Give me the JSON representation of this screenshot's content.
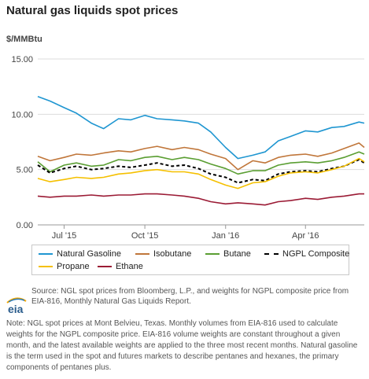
{
  "title": "Natural gas liquids spot prices",
  "chart_data": {
    "type": "line",
    "unit_label": "$/MMBtu",
    "ylim": [
      0,
      15
    ],
    "y_ticks": [
      "15.00",
      "10.00",
      "5.00",
      "0.00"
    ],
    "y_tick_values": [
      15,
      10,
      5,
      0
    ],
    "x_range": [
      "2015-06-01",
      "2016-06-07"
    ],
    "x_ticks": [
      {
        "label": "Jul '15",
        "date": "2015-07-01"
      },
      {
        "label": "Oct '15",
        "date": "2015-10-01"
      },
      {
        "label": "Jan '16",
        "date": "2016-01-01"
      },
      {
        "label": "Apr '16",
        "date": "2016-04-01"
      }
    ],
    "grid": "horizontal",
    "legend_position": "bottom",
    "x": [
      "2015-06-01",
      "2015-06-15",
      "2015-07-01",
      "2015-07-15",
      "2015-08-01",
      "2015-08-15",
      "2015-09-01",
      "2015-09-15",
      "2015-10-01",
      "2015-10-15",
      "2015-11-01",
      "2015-11-15",
      "2015-12-01",
      "2015-12-15",
      "2016-01-01",
      "2016-01-15",
      "2016-02-01",
      "2016-02-15",
      "2016-03-01",
      "2016-03-15",
      "2016-04-01",
      "2016-04-15",
      "2016-05-01",
      "2016-05-15",
      "2016-06-01",
      "2016-06-07"
    ],
    "series": [
      {
        "name": "Natural Gasoline",
        "color": "#1f96d1",
        "values": [
          11.6,
          11.2,
          10.6,
          10.1,
          9.2,
          8.7,
          9.6,
          9.5,
          9.9,
          9.6,
          9.5,
          9.4,
          9.2,
          8.4,
          7.0,
          6.0,
          6.3,
          6.6,
          7.6,
          8.0,
          8.5,
          8.4,
          8.8,
          8.9,
          9.3,
          9.2
        ]
      },
      {
        "name": "Isobutane",
        "color": "#c0763a",
        "values": [
          6.2,
          5.8,
          6.1,
          6.4,
          6.3,
          6.5,
          6.7,
          6.6,
          6.9,
          7.1,
          6.8,
          7.0,
          6.8,
          6.4,
          6.0,
          5.0,
          5.8,
          5.6,
          6.1,
          6.3,
          6.4,
          6.2,
          6.5,
          6.9,
          7.4,
          7.0
        ]
      },
      {
        "name": "Butane",
        "color": "#5a9e32",
        "values": [
          5.7,
          4.8,
          5.4,
          5.6,
          5.3,
          5.4,
          5.9,
          5.8,
          6.1,
          6.2,
          5.9,
          6.1,
          5.9,
          5.5,
          5.1,
          4.6,
          4.9,
          4.9,
          5.4,
          5.6,
          5.7,
          5.6,
          5.8,
          6.1,
          6.6,
          6.4
        ]
      },
      {
        "name": "NGPL Composite",
        "color": "#000000",
        "dashed": true,
        "values": [
          5.4,
          4.7,
          5.1,
          5.3,
          5.0,
          5.1,
          5.3,
          5.2,
          5.4,
          5.6,
          5.3,
          5.4,
          5.1,
          4.6,
          4.3,
          3.8,
          4.1,
          4.0,
          4.6,
          4.8,
          4.9,
          4.8,
          5.1,
          5.3,
          5.9,
          5.6
        ]
      },
      {
        "name": "Propane",
        "color": "#f5c000",
        "values": [
          4.2,
          3.9,
          4.1,
          4.3,
          4.2,
          4.3,
          4.6,
          4.7,
          4.9,
          5.0,
          4.8,
          4.8,
          4.6,
          4.1,
          3.6,
          3.3,
          3.8,
          3.9,
          4.4,
          4.7,
          4.8,
          4.7,
          5.0,
          5.3,
          6.0,
          5.7
        ]
      },
      {
        "name": "Ethane",
        "color": "#9b1b35",
        "values": [
          2.6,
          2.5,
          2.6,
          2.6,
          2.7,
          2.6,
          2.7,
          2.7,
          2.8,
          2.8,
          2.7,
          2.6,
          2.4,
          2.1,
          1.9,
          2.0,
          1.9,
          1.8,
          2.1,
          2.2,
          2.4,
          2.3,
          2.5,
          2.6,
          2.8,
          2.8
        ]
      }
    ]
  },
  "legend": [
    {
      "label": "Natural Gasoline",
      "color": "#1f96d1",
      "dashed": false
    },
    {
      "label": "Isobutane",
      "color": "#c0763a",
      "dashed": false
    },
    {
      "label": "Butane",
      "color": "#5a9e32",
      "dashed": false
    },
    {
      "label": "NGPL Composite",
      "color": "#000000",
      "dashed": true
    },
    {
      "label": "Propane",
      "color": "#f5c000",
      "dashed": false
    },
    {
      "label": "Ethane",
      "color": "#9b1b35",
      "dashed": false
    }
  ],
  "logo": {
    "text": "eia",
    "icon": "eia-logo-icon"
  },
  "source": "Source: NGL spot prices from Bloomberg, L.P., and weights for NGPL composite price from EIA-816, Monthly Natural Gas Liquids Report.",
  "note": "Note: NGL spot prices at Mont Belvieu, Texas. Monthly volumes from EIA-816 used to calculate weights for the NGPL composite price. EIA-816 volume weights are constant throughout a given month, and the latest available weights are applied to the three most recent months. Natural gasoline is the term used in the spot and futures markets to describe pentanes and hexanes, the primary components of pentanes plus."
}
